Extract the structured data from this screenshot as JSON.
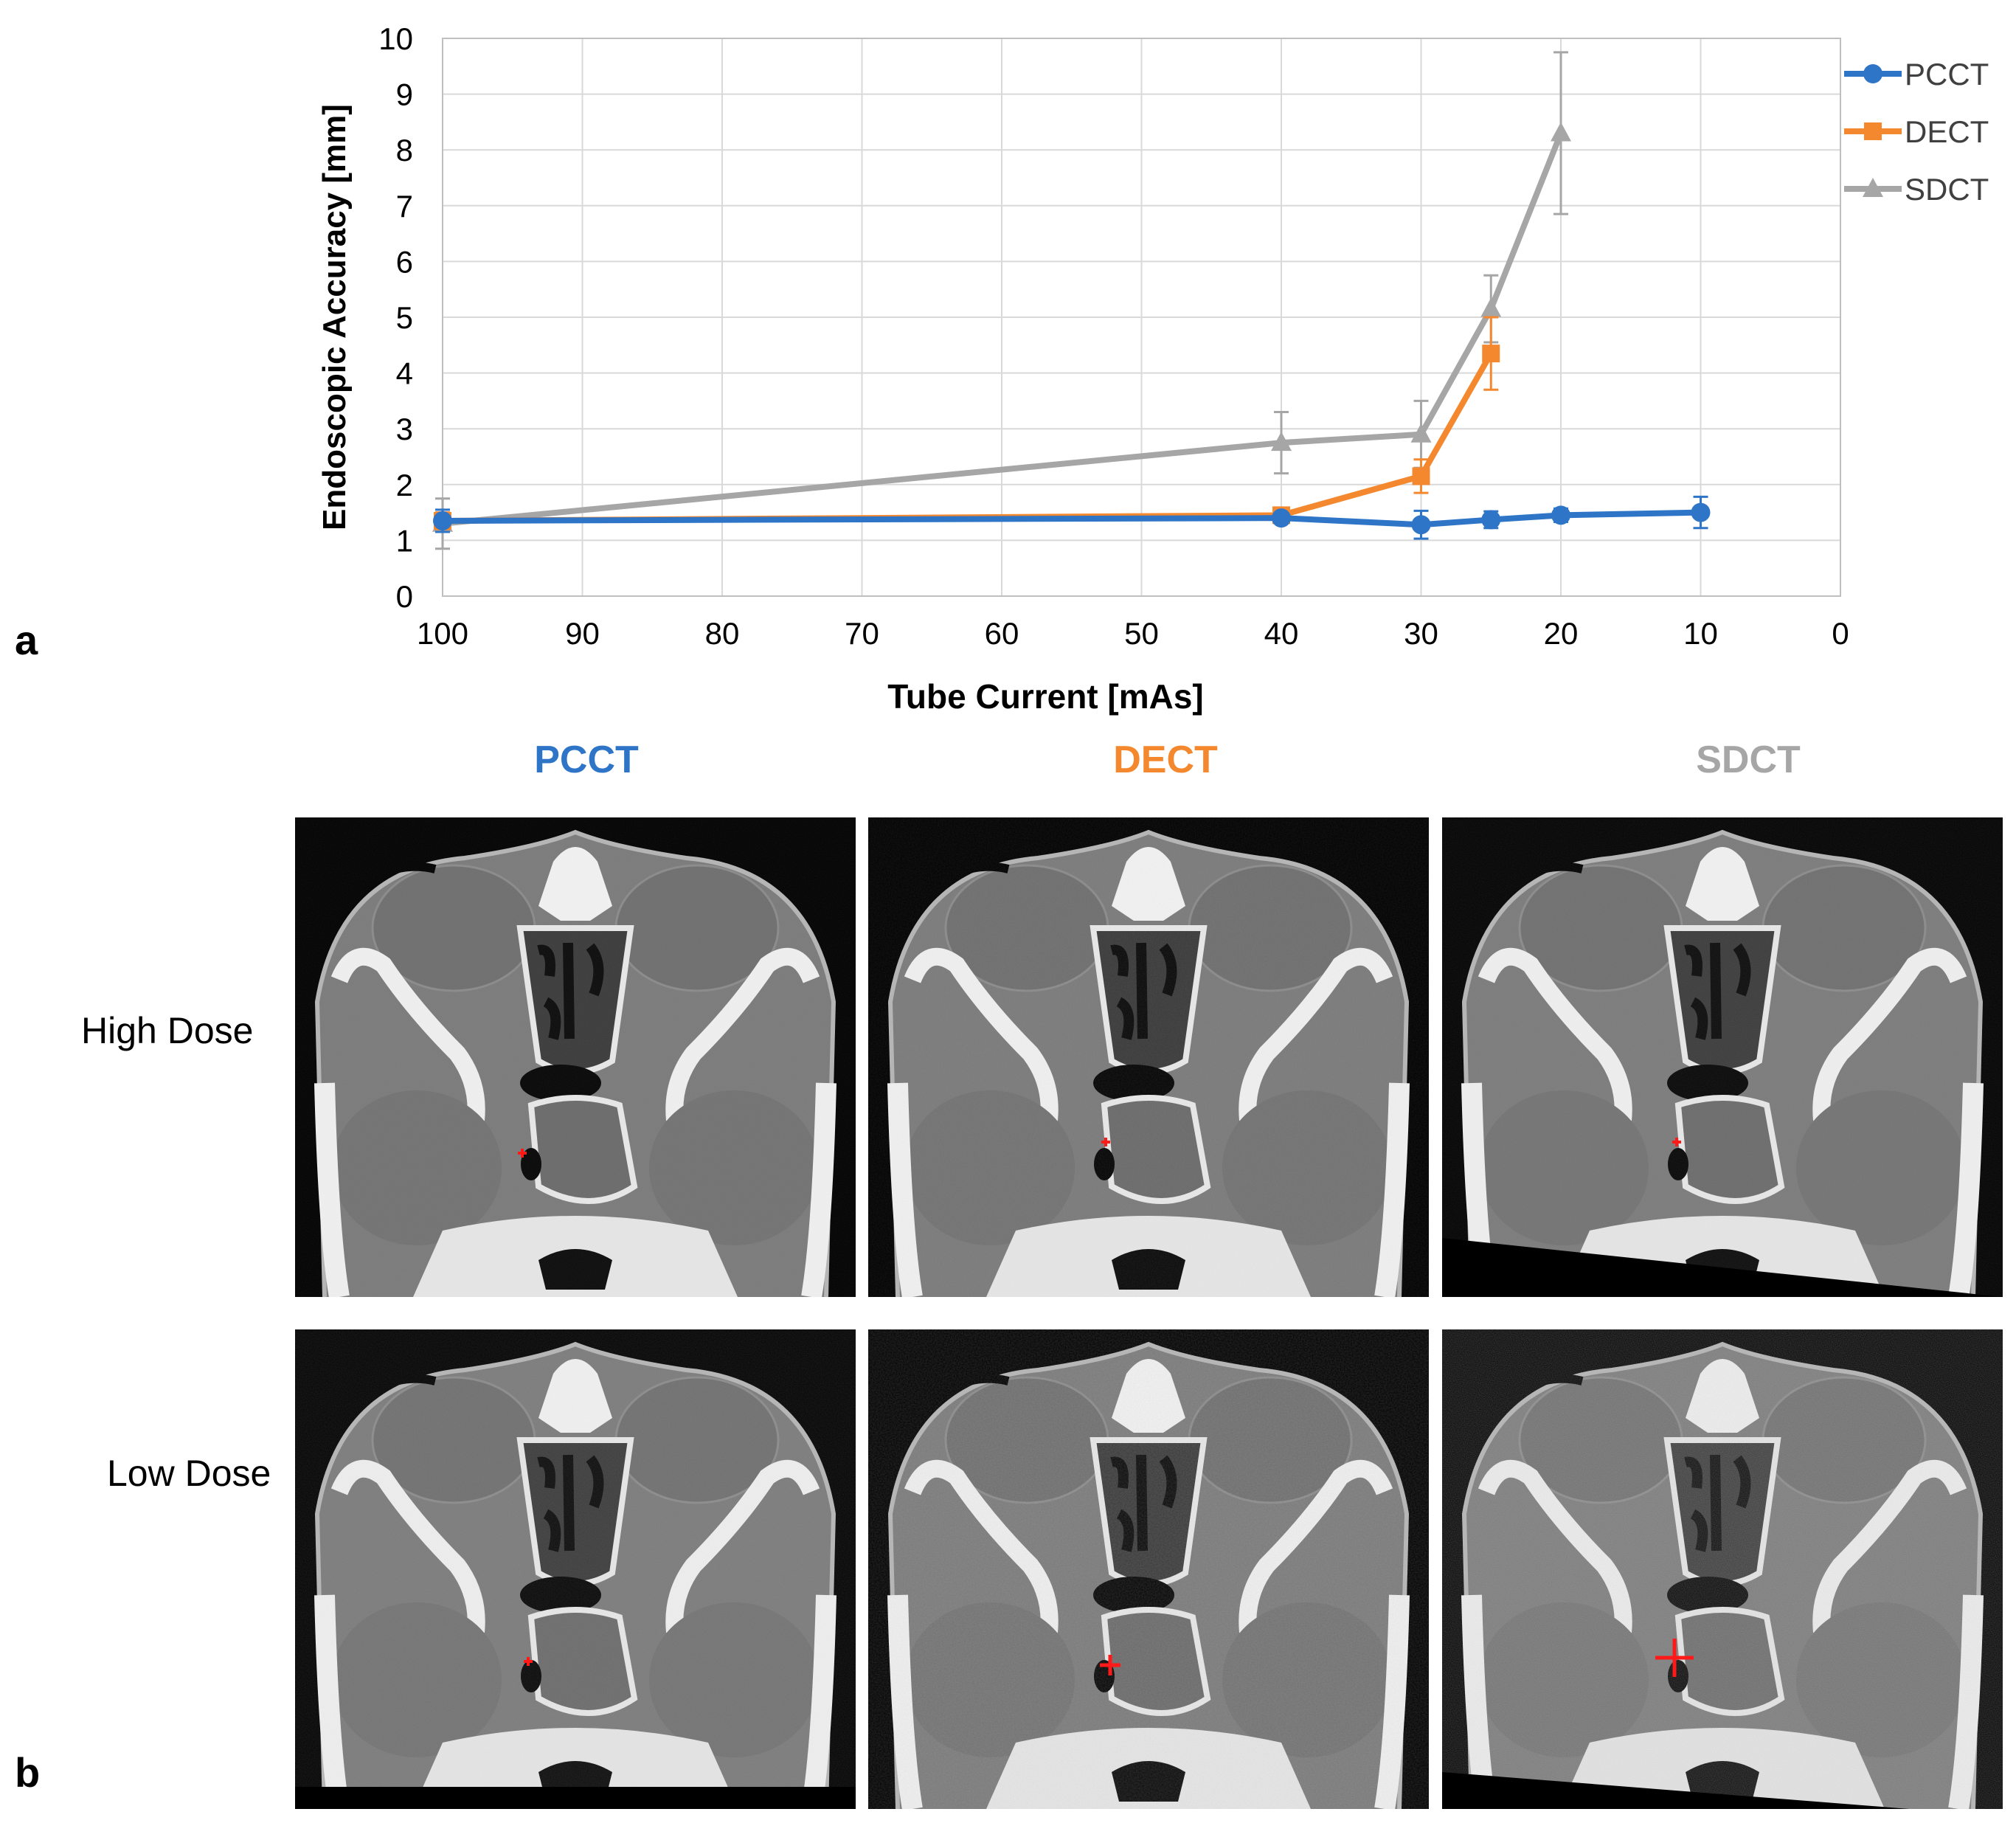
{
  "panel_labels": {
    "a": "a",
    "b": "b"
  },
  "chart_data": {
    "type": "line",
    "title": "",
    "xlabel": "Tube Current [mAs]",
    "ylabel": "Endoscopic Accuracy  [mm]",
    "xlim": [
      100,
      0
    ],
    "ylim": [
      0,
      10
    ],
    "x_ticks": [
      100,
      90,
      80,
      70,
      60,
      50,
      40,
      30,
      20,
      10,
      0
    ],
    "y_ticks": [
      0,
      1,
      2,
      3,
      4,
      5,
      6,
      7,
      8,
      9,
      10
    ],
    "grid": true,
    "legend_position": "right",
    "series": [
      {
        "name": "PCCT",
        "color": "#2E75C8",
        "marker": "circle",
        "x": [
          100,
          40,
          30,
          25,
          20,
          10
        ],
        "y": [
          1.35,
          1.4,
          1.28,
          1.37,
          1.45,
          1.5
        ],
        "err": [
          0.2,
          0.08,
          0.25,
          0.15,
          0.12,
          0.28
        ]
      },
      {
        "name": "DECT",
        "color": "#F4882E",
        "marker": "square",
        "x": [
          100,
          40,
          30,
          25
        ],
        "y": [
          1.35,
          1.45,
          2.15,
          4.35
        ],
        "err": [
          0.15,
          0.1,
          0.3,
          0.65
        ]
      },
      {
        "name": "SDCT",
        "color": "#A6A6A6",
        "marker": "triangle",
        "x": [
          100,
          40,
          30,
          25,
          20
        ],
        "y": [
          1.3,
          2.75,
          2.9,
          5.15,
          8.3
        ],
        "err": [
          0.45,
          0.55,
          0.6,
          0.6,
          1.45
        ]
      }
    ]
  },
  "image_grid": {
    "columns": [
      {
        "label": "PCCT",
        "color": "#2E75C8"
      },
      {
        "label": "DECT",
        "color": "#F4882E"
      },
      {
        "label": "SDCT",
        "color": "#A6A6A6"
      }
    ],
    "rows": [
      {
        "label": "High Dose"
      },
      {
        "label": "Low Dose"
      }
    ]
  }
}
